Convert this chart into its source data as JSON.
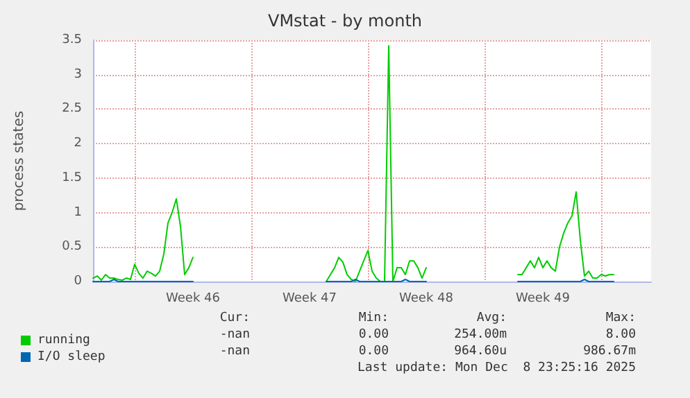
{
  "chart_data": {
    "type": "line",
    "title": "VMstat - by month",
    "ylabel": "process states",
    "categories": [
      null,
      null,
      null,
      null,
      null,
      null,
      null,
      null,
      null,
      null,
      null,
      null,
      null,
      null,
      null,
      null,
      null,
      null,
      null,
      null,
      null,
      null,
      null,
      null,
      "Week 46",
      null,
      null,
      null,
      null,
      null,
      null,
      null,
      null,
      null,
      null,
      null,
      null,
      null,
      null,
      null,
      null,
      null,
      null,
      null,
      null,
      null,
      null,
      null,
      null,
      null,
      null,
      null,
      "Week 47",
      null,
      null,
      null,
      null,
      null,
      null,
      null,
      null,
      null,
      null,
      null,
      null,
      null,
      null,
      null,
      null,
      null,
      null,
      null,
      null,
      null,
      null,
      null,
      null,
      null,
      null,
      null,
      "Week 48",
      null,
      null,
      null,
      null,
      null,
      null,
      null,
      null,
      null,
      null,
      null,
      null,
      null,
      null,
      null,
      null,
      null,
      null,
      null,
      null,
      null,
      null,
      null,
      null,
      null,
      null,
      null,
      "Week 49",
      null,
      null,
      null,
      null,
      null,
      null,
      null,
      null,
      null,
      null,
      null,
      null,
      null,
      null,
      null,
      null,
      null,
      null,
      null,
      null,
      null,
      null,
      null,
      null,
      null,
      null
    ],
    "ylim": [
      0,
      3.5
    ],
    "yticks": [
      0,
      0.5,
      1,
      1.5,
      2,
      2.5,
      3,
      3.5
    ],
    "grid": true,
    "legend": "bottom",
    "marker": "none",
    "line_style": "solid",
    "annotations": [
      "Cur:",
      "Min:",
      "Avg:",
      "Max:",
      "-nan",
      "0.00",
      "254.00m",
      "8.00",
      "-nan",
      "0.00",
      "964.60u",
      "986.67m",
      "Last update: Mon Dec  8 23:25:16 2025"
    ],
    "series": [
      {
        "name": "running",
        "color": "#00cc00",
        "values": [
          0.05,
          0.08,
          0.02,
          0.1,
          0.05,
          0.05,
          0.03,
          0.02,
          0.05,
          0.03,
          0.25,
          0.12,
          0.05,
          0.15,
          0.12,
          0.08,
          0.15,
          0.4,
          0.85,
          1.0,
          1.2,
          0.8,
          0.1,
          0.2,
          0.35,
          null,
          null,
          null,
          null,
          null,
          null,
          null,
          null,
          null,
          null,
          null,
          null,
          null,
          null,
          null,
          null,
          null,
          null,
          null,
          null,
          null,
          null,
          null,
          null,
          null,
          null,
          null,
          null,
          null,
          null,
          null,
          0,
          0.1,
          0.2,
          0.35,
          0.28,
          0.1,
          0.03,
          0,
          0.15,
          0.3,
          0.45,
          0.15,
          0.05,
          0,
          0,
          3.42,
          0,
          0.2,
          0.2,
          0.1,
          0.3,
          0.3,
          0.2,
          0.05,
          0.2,
          null,
          null,
          null,
          null,
          null,
          null,
          null,
          null,
          null,
          null,
          null,
          null,
          null,
          null,
          null,
          null,
          null,
          null,
          null,
          null,
          null,
          0.1,
          0.1,
          0.2,
          0.3,
          0.2,
          0.35,
          0.2,
          0.3,
          0.2,
          0.15,
          0.5,
          0.7,
          0.85,
          0.95,
          1.3,
          0.6,
          0.08,
          0.15,
          0.05,
          0.05,
          0.1,
          0.08,
          0.1,
          0.1,
          null,
          null,
          null,
          null,
          null,
          null,
          null,
          null,
          null
        ]
      },
      {
        "name": "I/O sleep",
        "color": "#0066b3",
        "values": [
          0,
          0,
          0,
          0,
          0,
          0.03,
          0,
          0,
          0,
          0,
          0,
          0,
          0,
          0,
          0,
          0,
          0,
          0,
          0,
          0,
          0,
          0,
          0,
          0,
          0,
          null,
          null,
          null,
          null,
          null,
          null,
          null,
          null,
          null,
          null,
          null,
          null,
          null,
          null,
          null,
          null,
          null,
          null,
          null,
          null,
          null,
          null,
          null,
          null,
          null,
          null,
          null,
          null,
          null,
          null,
          null,
          0,
          0,
          0,
          0,
          0,
          0,
          0,
          0.03,
          0,
          0,
          0,
          0,
          0,
          0,
          0,
          0,
          0,
          0,
          0,
          0.03,
          0,
          0,
          0,
          0,
          0,
          null,
          null,
          null,
          null,
          null,
          null,
          null,
          null,
          null,
          null,
          null,
          null,
          null,
          null,
          null,
          null,
          null,
          null,
          null,
          null,
          null,
          0,
          0,
          0,
          0,
          0,
          0,
          0,
          0,
          0,
          0,
          0,
          0,
          0,
          0,
          0,
          0,
          0.03,
          0,
          0,
          0,
          0,
          0,
          0,
          0,
          null,
          null,
          null,
          null,
          null,
          null,
          null,
          null,
          null
        ]
      }
    ]
  }
}
